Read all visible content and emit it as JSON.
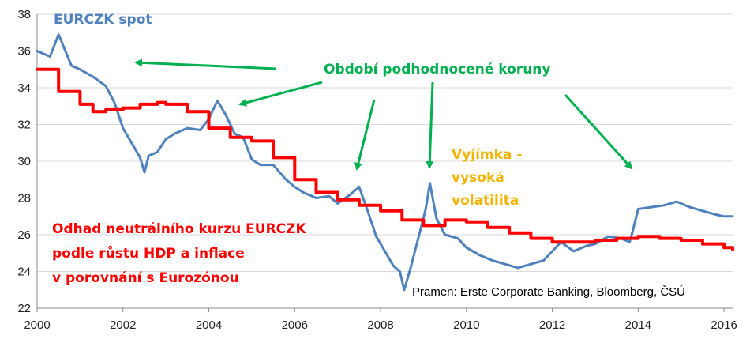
{
  "chart_data": {
    "type": "line",
    "title": "",
    "xlabel": "",
    "ylabel": "",
    "xlim": [
      2000,
      2016.2
    ],
    "ylim": [
      22,
      38
    ],
    "x_ticks": [
      "2000",
      "2002",
      "2004",
      "2006",
      "2008",
      "2010",
      "2012",
      "2014",
      "2016"
    ],
    "y_ticks": [
      "22",
      "24",
      "26",
      "28",
      "30",
      "32",
      "34",
      "36",
      "38"
    ],
    "grid": "horizontal",
    "series": [
      {
        "name": "EURCZK spot",
        "color": "#4f81bd",
        "x": [
          2000.0,
          2000.3,
          2000.5,
          2000.8,
          2001.0,
          2001.3,
          2001.6,
          2001.8,
          2002.0,
          2002.2,
          2002.4,
          2002.5,
          2002.6,
          2002.8,
          2003.0,
          2003.2,
          2003.5,
          2003.8,
          2004.0,
          2004.2,
          2004.4,
          2004.6,
          2004.8,
          2005.0,
          2005.2,
          2005.5,
          2005.8,
          2006.0,
          2006.2,
          2006.5,
          2006.8,
          2007.0,
          2007.3,
          2007.5,
          2007.7,
          2007.9,
          2008.1,
          2008.3,
          2008.45,
          2008.55,
          2008.7,
          2008.9,
          2009.05,
          2009.15,
          2009.3,
          2009.5,
          2009.8,
          2010.0,
          2010.3,
          2010.6,
          2010.9,
          2011.2,
          2011.5,
          2011.8,
          2012.0,
          2012.2,
          2012.5,
          2012.8,
          2013.0,
          2013.3,
          2013.6,
          2013.8,
          2013.85,
          2014.0,
          2014.3,
          2014.6,
          2014.9,
          2015.2,
          2015.5,
          2015.8,
          2016.0,
          2016.2
        ],
        "y": [
          36.0,
          35.7,
          36.9,
          35.2,
          35.0,
          34.6,
          34.1,
          33.2,
          31.8,
          31.0,
          30.2,
          29.4,
          30.3,
          30.5,
          31.2,
          31.5,
          31.8,
          31.7,
          32.3,
          33.3,
          32.5,
          31.5,
          31.3,
          30.1,
          29.8,
          29.8,
          29.0,
          28.6,
          28.3,
          28.0,
          28.1,
          27.7,
          28.2,
          28.6,
          27.3,
          25.9,
          25.1,
          24.3,
          24.0,
          23.0,
          24.2,
          26.0,
          27.4,
          28.8,
          26.9,
          26.0,
          25.8,
          25.3,
          24.9,
          24.6,
          24.4,
          24.2,
          24.4,
          24.6,
          25.1,
          25.6,
          25.1,
          25.4,
          25.5,
          25.9,
          25.8,
          25.6,
          26.0,
          27.4,
          27.5,
          27.6,
          27.8,
          27.5,
          27.3,
          27.1,
          27.0,
          27.0
        ]
      },
      {
        "name": "",
        "color": "#ff0000",
        "x": [
          2000.0,
          2000.3,
          2000.5,
          2001.0,
          2001.3,
          2001.6,
          2002.0,
          2002.4,
          2002.8,
          2003.0,
          2003.5,
          2004.0,
          2004.5,
          2005.0,
          2005.5,
          2006.0,
          2006.5,
          2007.0,
          2007.5,
          2008.0,
          2008.5,
          2009.0,
          2009.5,
          2010.0,
          2010.5,
          2011.0,
          2011.5,
          2012.0,
          2012.5,
          2013.0,
          2013.5,
          2014.0,
          2014.5,
          2015.0,
          2015.5,
          2016.0,
          2016.2
        ],
        "y": [
          35.0,
          35.0,
          33.8,
          33.1,
          32.7,
          32.8,
          32.9,
          33.1,
          33.2,
          33.1,
          32.7,
          31.8,
          31.3,
          31.1,
          30.2,
          29.0,
          28.3,
          27.9,
          27.6,
          27.3,
          26.8,
          26.5,
          26.8,
          26.7,
          26.4,
          26.1,
          25.8,
          25.6,
          25.6,
          25.7,
          25.8,
          25.9,
          25.8,
          25.7,
          25.5,
          25.3,
          25.2
        ]
      }
    ],
    "annotations": {
      "spot_label": "EURCZK spot",
      "undervalued": "Období podhodnocené koruny",
      "exception_1": "Vyjímka -",
      "exception_2": "vysoká",
      "exception_3": "volatilita",
      "neutral_1": "Odhad neutrálního kurzu EURCZK",
      "neutral_2": "podle  růstu HDP a inflace",
      "neutral_3": "v porovnání s Eurozónou",
      "source": "Pramen: Erste Corporate Banking, Bloomberg, ČSÚ"
    },
    "colors": {
      "spot_label": "#4f81bd",
      "undervalued": "#00b050",
      "arrows": "#00b050",
      "exception": "#f0b400",
      "neutral": "#ff0000"
    }
  }
}
